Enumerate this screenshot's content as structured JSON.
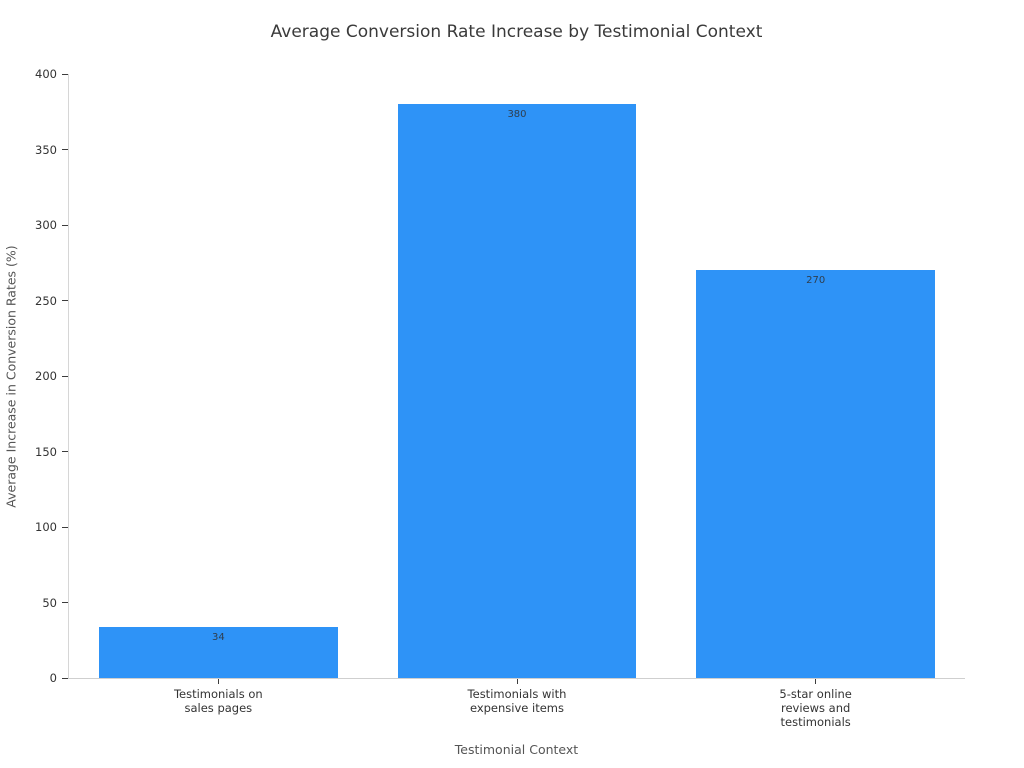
{
  "chart_data": {
    "type": "bar",
    "title": "Average Conversion Rate Increase by Testimonial Context",
    "xlabel": "Testimonial Context",
    "ylabel": "Average Increase in Conversion Rates (%)",
    "categories": [
      "Testimonials on\nsales pages",
      "Testimonials with\nexpensive items",
      "5-star online\nreviews and\ntestimonials"
    ],
    "values": [
      34,
      380,
      270
    ],
    "value_labels": [
      "34",
      "380",
      "270"
    ],
    "ylim": [
      0,
      400
    ],
    "yticks": [
      0,
      50,
      100,
      150,
      200,
      250,
      300,
      350,
      400
    ],
    "grid": false,
    "legend_position": "none",
    "bar_width_fraction": 0.8,
    "colors": {
      "bar": "#2e93f7",
      "value_label": "#2f3e4e",
      "title": "#3a3a3a",
      "tick_label": "#333333",
      "axis_label": "#555555",
      "spine": "#d0d0d0",
      "background": "#ffffff"
    }
  }
}
